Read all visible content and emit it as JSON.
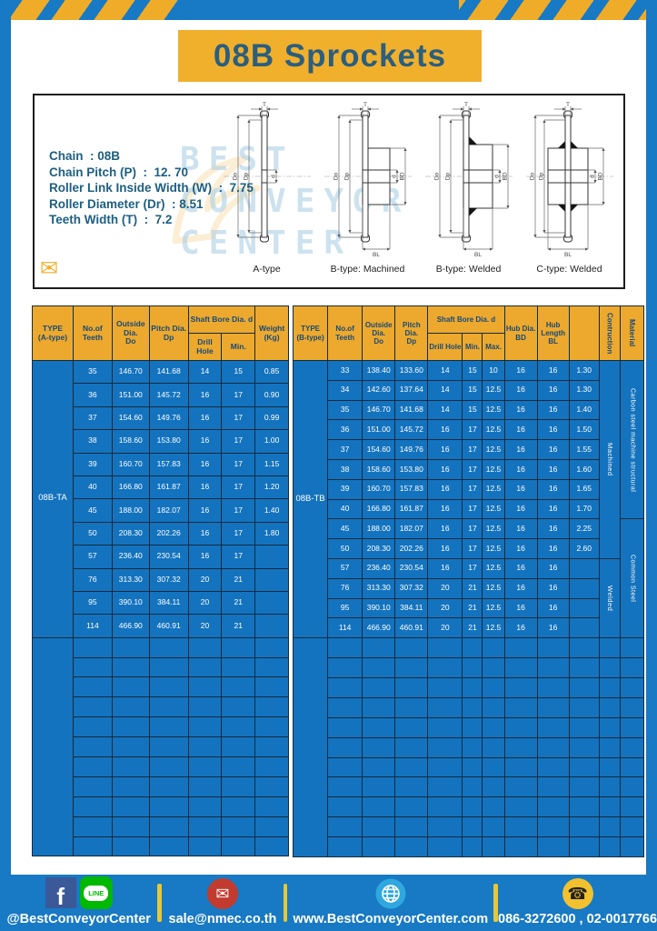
{
  "banner": {
    "title": "08B Sprockets"
  },
  "specs": {
    "lines": [
      "Chain  : 08B",
      "Chain Pitch (P)  :  12. 70",
      "Roller Link Inside Width (W)  :  7.75",
      "Roller Diameter (Dr)  : 8.51",
      "Teeth Width (T)  :  7.2"
    ]
  },
  "watermark": {
    "text": "BEST\nCONVEYOR\nCENTER",
    "mail_glyph": "✉"
  },
  "diagrams": {
    "labels": [
      "A-type",
      "B-type: Machined",
      "B-type: Welded",
      "C-type: Welded"
    ],
    "dims": {
      "t": "T",
      "outside": "Do",
      "pitch": "Dp",
      "bore": "d",
      "hub_dia": "BD",
      "hub_len": "BL"
    }
  },
  "table_a": {
    "type_label": "08B-TA",
    "header": {
      "type": "TYPE\n(A-type)",
      "teeth": "No.of\nTeeth",
      "outside": "Outside\nDia.\nDo",
      "pitch": "Pitch Dia.\nDp",
      "shaft_bore": "Shaft Bore Dia. d",
      "drill": "Drill Hole",
      "min": "Min.",
      "weight": "Weight\n(Kg)"
    },
    "rows": [
      [
        "35",
        "146.70",
        "141.68",
        "14",
        "15",
        "0.85"
      ],
      [
        "36",
        "151.00",
        "145.72",
        "16",
        "17",
        "0.90"
      ],
      [
        "37",
        "154.60",
        "149.76",
        "16",
        "17",
        "0.99"
      ],
      [
        "38",
        "158.60",
        "153.80",
        "16",
        "17",
        "1.00"
      ],
      [
        "39",
        "160.70",
        "157.83",
        "16",
        "17",
        "1.15"
      ],
      [
        "40",
        "166.80",
        "161.87",
        "16",
        "17",
        "1.20"
      ],
      [
        "45",
        "188.00",
        "182.07",
        "16",
        "17",
        "1.40"
      ],
      [
        "50",
        "208.30",
        "202.26",
        "16",
        "17",
        "1.80"
      ],
      [
        "57",
        "236.40",
        "230.54",
        "16",
        "17",
        ""
      ],
      [
        "76",
        "313.30",
        "307.32",
        "20",
        "21",
        ""
      ],
      [
        "95",
        "390.10",
        "384.11",
        "20",
        "21",
        ""
      ],
      [
        "114",
        "466.90",
        "460.91",
        "20",
        "21",
        ""
      ]
    ]
  },
  "table_b": {
    "type_label": "08B-TB",
    "header": {
      "type": "TYPE\n(B-type)",
      "teeth": "No.of\nTeeth",
      "outside": "Outside\nDia.\nDo",
      "pitch": "Pitch Dia.\nDp",
      "shaft_bore": "Shaft Bore Dia. d",
      "drill": "Drill Hole",
      "min": "Min.",
      "max": "Max.",
      "hub_dia": "Hub Dia.\nBD",
      "hub_len": "Hub\nLength\nBL",
      "construction": "Contruction",
      "material": "Material"
    },
    "rows": [
      [
        "33",
        "138.40",
        "133.60",
        "14",
        "15",
        "10",
        "16",
        "16",
        "1.30"
      ],
      [
        "34",
        "142.60",
        "137.64",
        "14",
        "15",
        "12.5",
        "16",
        "16",
        "1.30"
      ],
      [
        "35",
        "146.70",
        "141.68",
        "14",
        "15",
        "12.5",
        "16",
        "16",
        "1.40"
      ],
      [
        "36",
        "151.00",
        "145.72",
        "16",
        "17",
        "12.5",
        "16",
        "16",
        "1.50"
      ],
      [
        "37",
        "154.60",
        "149.76",
        "16",
        "17",
        "12.5",
        "16",
        "16",
        "1.55"
      ],
      [
        "38",
        "158.60",
        "153.80",
        "16",
        "17",
        "12.5",
        "16",
        "16",
        "1.60"
      ],
      [
        "39",
        "160.70",
        "157.83",
        "16",
        "17",
        "12.5",
        "16",
        "16",
        "1.65"
      ],
      [
        "40",
        "166.80",
        "161.87",
        "16",
        "17",
        "12.5",
        "16",
        "16",
        "1.70"
      ],
      [
        "45",
        "188.00",
        "182.07",
        "16",
        "17",
        "12.5",
        "16",
        "16",
        "2.25"
      ],
      [
        "50",
        "208.30",
        "202.26",
        "16",
        "17",
        "12.5",
        "16",
        "16",
        "2.60"
      ],
      [
        "57",
        "236.40",
        "230.54",
        "16",
        "17",
        "12.5",
        "16",
        "16",
        ""
      ],
      [
        "76",
        "313.30",
        "307.32",
        "20",
        "21",
        "12.5",
        "16",
        "16",
        ""
      ],
      [
        "95",
        "390.10",
        "384.11",
        "20",
        "21",
        "12.5",
        "16",
        "16",
        ""
      ],
      [
        "114",
        "466.90",
        "460.91",
        "20",
        "21",
        "12.5",
        "16",
        "16",
        ""
      ]
    ],
    "construction": [
      {
        "label": "Machined",
        "rows": 10
      },
      {
        "label": "Welded",
        "rows": 4
      }
    ],
    "material": [
      {
        "label": "Carbon steel  machine structural",
        "rows": 8
      },
      {
        "label": "Common  Steel",
        "rows": 6
      }
    ]
  },
  "footer": {
    "social": {
      "label": "@BestConveyorCenter",
      "line_text": "LINE",
      "fb_text": "f"
    },
    "email": {
      "label": "sale@nmec.co.th",
      "glyph": "✉"
    },
    "website": {
      "label": "www.BestConveyorCenter.com"
    },
    "phone": {
      "label": "086-3272600 , 02-0017766",
      "glyph": "☎"
    }
  },
  "colors": {
    "frame_blue": "#1879C4",
    "cell_blue": "#1473BE",
    "accent_yellow": "#F0B02C",
    "header_orange": "#ECA92D",
    "border_dark": "#142B3F",
    "title_text": "#2B5E7F"
  }
}
